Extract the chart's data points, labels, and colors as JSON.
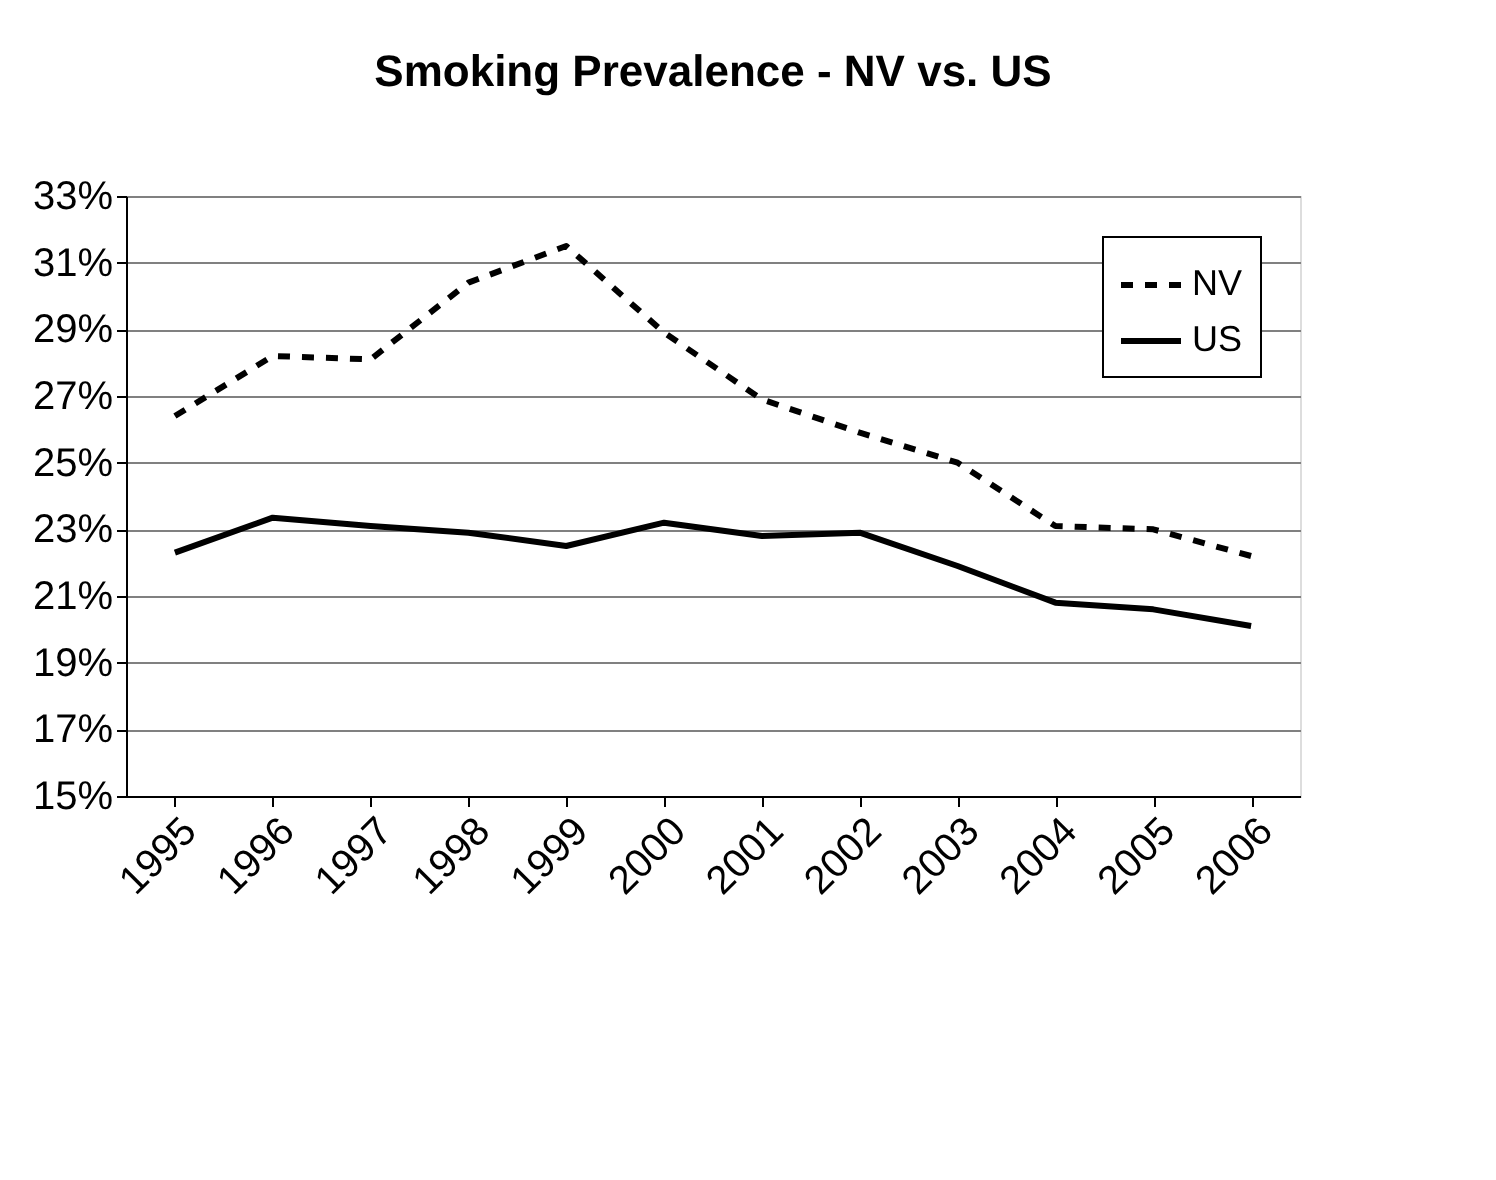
{
  "chart_data": {
    "type": "line",
    "title": "Smoking Prevalence - NV vs. US",
    "categories": [
      "1995",
      "1996",
      "1997",
      "1998",
      "1999",
      "2000",
      "2001",
      "2002",
      "2003",
      "2004",
      "2005",
      "2006"
    ],
    "series": [
      {
        "name": "NV",
        "color": "#000000",
        "line_style": "dashed",
        "values": [
          26.4,
          28.2,
          28.1,
          30.4,
          31.5,
          28.9,
          26.9,
          25.9,
          25.0,
          23.1,
          23.0,
          22.2
        ]
      },
      {
        "name": "US",
        "color": "#000000",
        "line_style": "solid",
        "values": [
          22.3,
          23.35,
          23.1,
          22.9,
          22.5,
          23.2,
          22.8,
          22.9,
          21.9,
          20.8,
          20.6,
          20.1
        ]
      }
    ],
    "ylim": [
      15,
      33
    ],
    "yticks": [
      {
        "value": 15,
        "label": "15%"
      },
      {
        "value": 17,
        "label": "17%"
      },
      {
        "value": 19,
        "label": "19%"
      },
      {
        "value": 21,
        "label": "21%"
      },
      {
        "value": 23,
        "label": "23%"
      },
      {
        "value": 25,
        "label": "25%"
      },
      {
        "value": 27,
        "label": "27%"
      },
      {
        "value": 29,
        "label": "29%"
      },
      {
        "value": 31,
        "label": "31%"
      },
      {
        "value": 33,
        "label": "33%"
      }
    ],
    "grid": "y",
    "legend": "top right",
    "marker": "none"
  }
}
